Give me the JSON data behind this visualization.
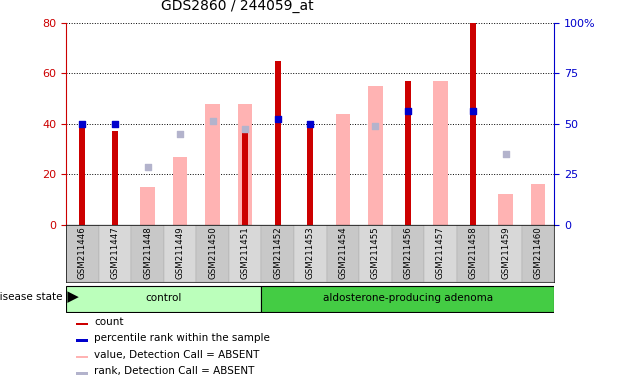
{
  "title": "GDS2860 / 244059_at",
  "samples": [
    "GSM211446",
    "GSM211447",
    "GSM211448",
    "GSM211449",
    "GSM211450",
    "GSM211451",
    "GSM211452",
    "GSM211453",
    "GSM211454",
    "GSM211455",
    "GSM211456",
    "GSM211457",
    "GSM211458",
    "GSM211459",
    "GSM211460"
  ],
  "count_values": [
    39,
    37,
    0,
    0,
    0,
    38,
    65,
    40,
    0,
    0,
    57,
    0,
    80,
    0,
    0
  ],
  "percentile_values": [
    40,
    40,
    0,
    0,
    0,
    0,
    42,
    40,
    0,
    0,
    45,
    0,
    45,
    0,
    0
  ],
  "absent_value_values": [
    0,
    0,
    15,
    27,
    48,
    48,
    0,
    0,
    44,
    55,
    0,
    57,
    0,
    12,
    16
  ],
  "absent_rank_values": [
    0,
    0,
    23,
    36,
    41,
    38,
    0,
    0,
    0,
    39,
    0,
    0,
    0,
    28,
    0
  ],
  "control_count": 6,
  "adenoma_count": 9,
  "ylim_left": [
    0,
    80
  ],
  "ylim_right": [
    0,
    100
  ],
  "yticks_left": [
    0,
    20,
    40,
    60,
    80
  ],
  "yticks_right": [
    0,
    25,
    50,
    75,
    100
  ],
  "color_count": "#cc0000",
  "color_percentile": "#0000cc",
  "color_absent_value": "#ffb3b3",
  "color_absent_rank": "#b3b3cc",
  "color_control_bg": "#bbffbb",
  "color_adenoma_bg": "#44cc44",
  "color_plot_bg": "#ffffff",
  "absent_bar_width": 0.45,
  "count_bar_width": 0.18,
  "legend_items": [
    {
      "label": "count",
      "color": "#cc0000"
    },
    {
      "label": "percentile rank within the sample",
      "color": "#0000cc"
    },
    {
      "label": "value, Detection Call = ABSENT",
      "color": "#ffb3b3"
    },
    {
      "label": "rank, Detection Call = ABSENT",
      "color": "#b3b3cc"
    }
  ]
}
